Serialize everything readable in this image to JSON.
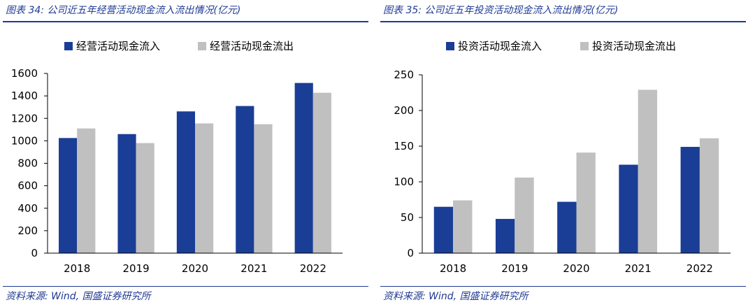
{
  "colors": {
    "inflow": "#1a3d96",
    "outflow": "#c0c0c0",
    "title": "#1f3a93",
    "axis": "#000000"
  },
  "chart_data": [
    {
      "type": "bar",
      "title": "图表 34: 公司近五年经营活动现金流入流出情况(亿元)",
      "source": "资料来源: Wind, 国盛证券研究所",
      "categories": [
        "2018",
        "2019",
        "2020",
        "2021",
        "2022"
      ],
      "series": [
        {
          "name": "经营活动现金流入",
          "color": "#1a3d96",
          "values": [
            1025,
            1060,
            1262,
            1310,
            1515
          ]
        },
        {
          "name": "经营活动现金流出",
          "color": "#c0c0c0",
          "values": [
            1110,
            980,
            1155,
            1148,
            1428
          ]
        }
      ],
      "ylim": [
        0,
        1600
      ],
      "yticks": [
        0,
        200,
        400,
        600,
        800,
        1000,
        1200,
        1400,
        1600
      ],
      "xlabel": "",
      "ylabel": "",
      "grid": false,
      "legend": "top"
    },
    {
      "type": "bar",
      "title": "图表 35: 公司近五年投资活动现金流入流出情况(亿元)",
      "source": "资料来源: Wind, 国盛证券研究所",
      "categories": [
        "2018",
        "2019",
        "2020",
        "2021",
        "2022"
      ],
      "series": [
        {
          "name": "投资活动现金流入",
          "color": "#1a3d96",
          "values": [
            65,
            48,
            72,
            124,
            149
          ]
        },
        {
          "name": "投资活动现金流出",
          "color": "#c0c0c0",
          "values": [
            74,
            106,
            141,
            229,
            161
          ]
        }
      ],
      "ylim": [
        0,
        250
      ],
      "yticks": [
        0,
        50,
        100,
        150,
        200,
        250
      ],
      "xlabel": "",
      "ylabel": "",
      "grid": false,
      "legend": "top"
    }
  ]
}
